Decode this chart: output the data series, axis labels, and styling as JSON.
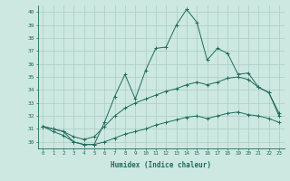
{
  "xlabel": "Humidex (Indice chaleur)",
  "x": [
    0,
    1,
    2,
    3,
    4,
    5,
    6,
    7,
    8,
    9,
    10,
    11,
    12,
    13,
    14,
    15,
    16,
    17,
    18,
    19,
    20,
    21,
    22,
    23
  ],
  "line1": [
    31.2,
    31.0,
    30.8,
    30.0,
    29.8,
    29.8,
    31.5,
    33.5,
    35.2,
    33.3,
    35.5,
    37.2,
    37.3,
    39.0,
    40.2,
    39.2,
    36.3,
    37.2,
    36.8,
    35.2,
    35.3,
    34.2,
    33.8,
    32.0
  ],
  "line2": [
    31.2,
    31.0,
    30.8,
    30.4,
    30.2,
    30.4,
    31.2,
    32.0,
    32.6,
    33.0,
    33.3,
    33.6,
    33.9,
    34.1,
    34.4,
    34.6,
    34.4,
    34.6,
    34.9,
    35.0,
    34.8,
    34.2,
    33.8,
    32.2
  ],
  "line3": [
    31.2,
    30.8,
    30.5,
    30.0,
    29.8,
    29.8,
    30.0,
    30.3,
    30.6,
    30.8,
    31.0,
    31.3,
    31.5,
    31.7,
    31.9,
    32.0,
    31.8,
    32.0,
    32.2,
    32.3,
    32.1,
    32.0,
    31.8,
    31.5
  ],
  "line_color": "#1f6b5e",
  "bg_color": "#cce8e0",
  "grid_color": "#aaccc4",
  "ylim": [
    29.5,
    40.5
  ],
  "yticks": [
    30,
    31,
    32,
    33,
    34,
    35,
    36,
    37,
    38,
    39,
    40
  ],
  "xlim": [
    -0.5,
    23.5
  ]
}
